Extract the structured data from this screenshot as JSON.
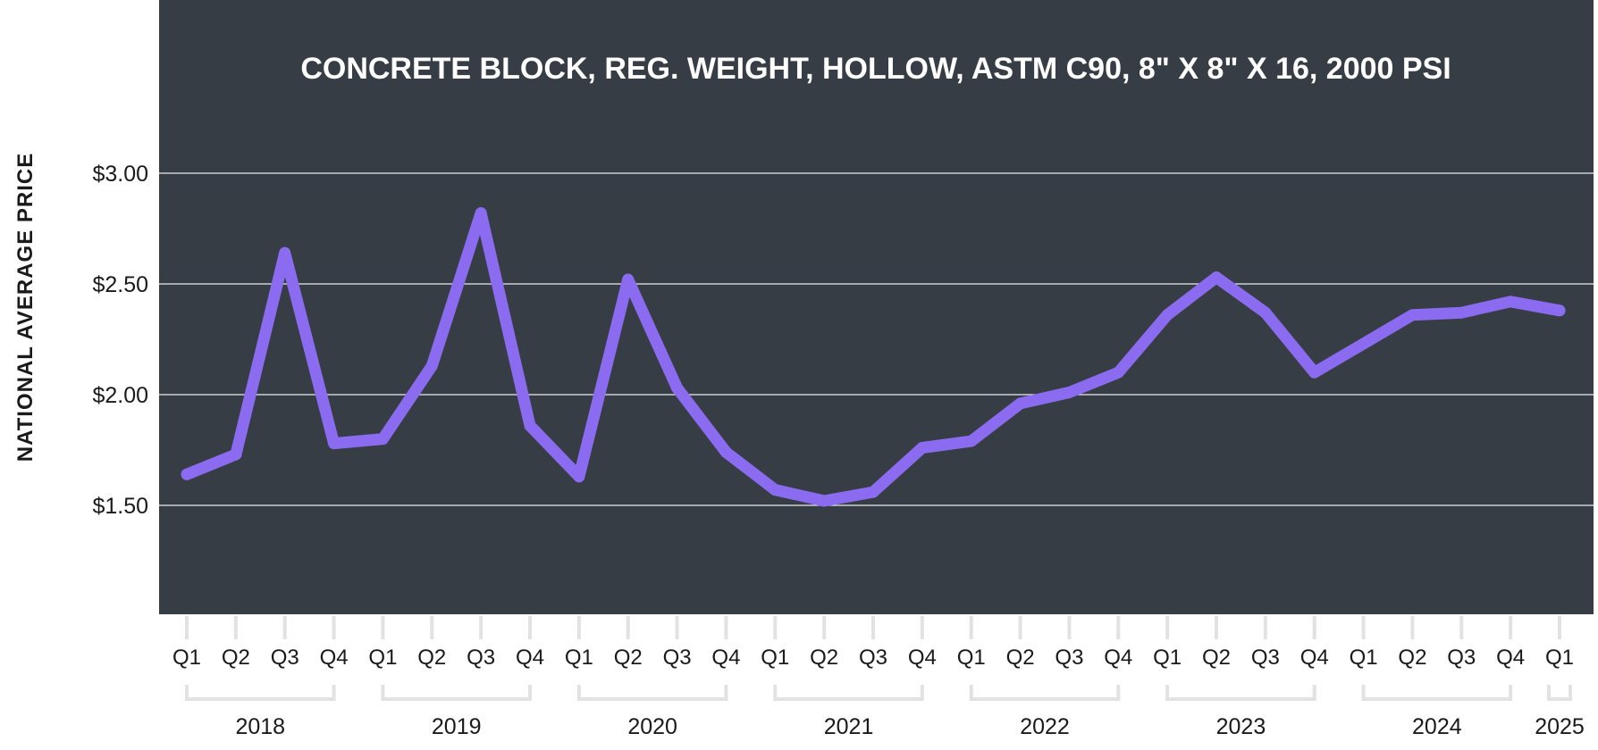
{
  "chart_data": {
    "type": "line",
    "title": "CONCRETE BLOCK, REG. WEIGHT, HOLLOW, ASTM C90, 8\" X 8\" X 16, 2000 PSI",
    "xlabel": "",
    "ylabel": "NATIONAL AVERAGE PRICE",
    "ylim": [
      1.0,
      3.6
    ],
    "yticks": [
      3.0,
      2.5,
      2.0,
      1.5
    ],
    "ytick_labels": [
      "$3.00",
      "$2.50",
      "$2.00",
      "$1.50"
    ],
    "grid": true,
    "legend": "none",
    "categories": [
      "Q1",
      "Q2",
      "Q3",
      "Q4",
      "Q1",
      "Q2",
      "Q3",
      "Q4",
      "Q1",
      "Q2",
      "Q3",
      "Q4",
      "Q1",
      "Q2",
      "Q3",
      "Q4",
      "Q1",
      "Q2",
      "Q3",
      "Q4",
      "Q1",
      "Q2",
      "Q3",
      "Q4",
      "Q1",
      "Q2",
      "Q3",
      "Q4",
      "Q1"
    ],
    "year_groups": [
      {
        "label": "2018",
        "start": 0,
        "end": 3
      },
      {
        "label": "2019",
        "start": 4,
        "end": 7
      },
      {
        "label": "2020",
        "start": 8,
        "end": 11
      },
      {
        "label": "2021",
        "start": 12,
        "end": 15
      },
      {
        "label": "2022",
        "start": 16,
        "end": 19
      },
      {
        "label": "2023",
        "start": 20,
        "end": 23
      },
      {
        "label": "2024",
        "start": 24,
        "end": 27
      },
      {
        "label": "2025",
        "start": 28,
        "end": 28
      }
    ],
    "series": [
      {
        "values": [
          1.64,
          1.73,
          2.64,
          1.78,
          1.8,
          2.13,
          2.82,
          1.86,
          1.63,
          2.52,
          2.03,
          1.74,
          1.57,
          1.52,
          1.56,
          1.76,
          1.79,
          1.96,
          2.01,
          2.1,
          2.36,
          2.53,
          2.37,
          2.1,
          2.23,
          2.36,
          2.37,
          2.42,
          2.38
        ]
      }
    ]
  },
  "colors": {
    "plot_background": "#363d45",
    "line": "#8b6cf0",
    "gridline": "#ffffff",
    "bracket": "#e2e2e2"
  }
}
